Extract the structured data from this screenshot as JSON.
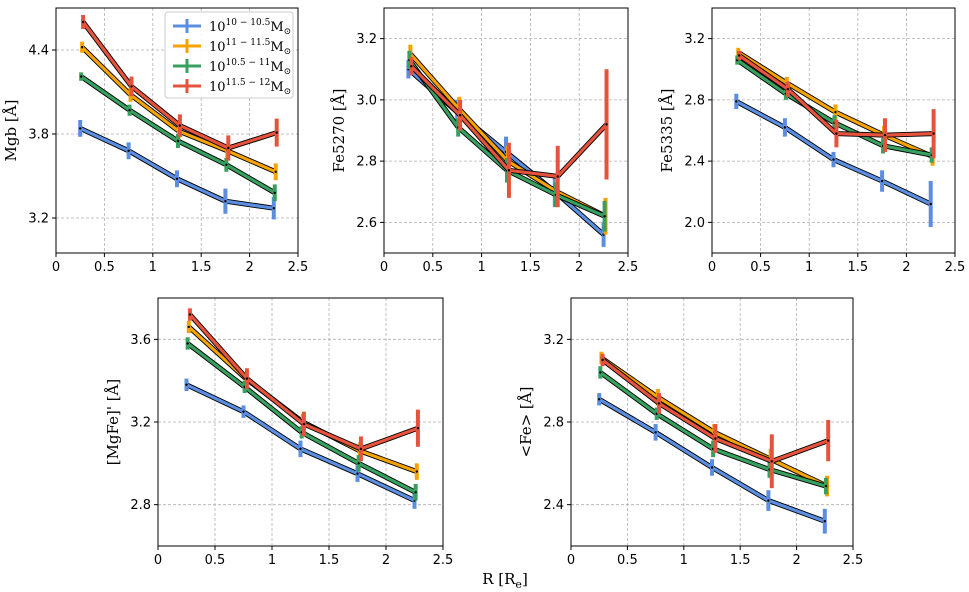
{
  "figure": {
    "shared_xlabel": "R [R",
    "shared_xlabel_sub": "e",
    "shared_xlabel_end": "]"
  },
  "legend": {
    "location": "top-right of first panel",
    "entries": [
      {
        "base": "10",
        "exp": "10 − 10.5",
        "unit": "M",
        "sub": "⊙",
        "color": "#5b8de0"
      },
      {
        "base": "10",
        "exp": "11 − 11.5",
        "unit": "M",
        "sub": "⊙",
        "color": "#f5a300"
      },
      {
        "base": "10",
        "exp": "10.5 − 11",
        "unit": "M",
        "sub": "⊙",
        "color": "#37a05f"
      },
      {
        "base": "10",
        "exp": "11.5 − 12",
        "unit": "M",
        "sub": "⊙",
        "color": "#e5533d"
      }
    ]
  },
  "chart_data": [
    {
      "type": "line",
      "ylabel": "Mgb [Å]",
      "xlim": [
        0,
        2.5
      ],
      "ylim": [
        2.95,
        4.7
      ],
      "xticks": [
        0,
        0.5,
        1,
        1.5,
        2,
        2.5
      ],
      "xticklabels": [
        "0",
        "0.5",
        "1",
        "1.5",
        "2",
        "2.5"
      ],
      "yticks": [
        3.2,
        3.8,
        4.4
      ],
      "yticklabels": [
        "3.2",
        "3.8",
        "4.4"
      ],
      "grid": true,
      "series": [
        {
          "name": "10^{10-10.5} M_sun",
          "color": "#5b8de0",
          "x": [
            0.25,
            0.75,
            1.25,
            1.75,
            2.25
          ],
          "y": [
            3.84,
            3.68,
            3.48,
            3.32,
            3.27
          ],
          "err": [
            0.06,
            0.06,
            0.06,
            0.09,
            0.08
          ]
        },
        {
          "name": "10^{11-11.5} M_sun",
          "color": "#f5a300",
          "x": [
            0.27,
            0.77,
            1.27,
            1.77,
            2.27
          ],
          "y": [
            4.42,
            4.08,
            3.82,
            3.68,
            3.53
          ],
          "err": [
            0.04,
            0.05,
            0.05,
            0.05,
            0.06
          ]
        },
        {
          "name": "10^{10.5-11} M_sun",
          "color": "#37a05f",
          "x": [
            0.26,
            0.76,
            1.26,
            1.76,
            2.26
          ],
          "y": [
            4.21,
            3.97,
            3.75,
            3.58,
            3.38
          ],
          "err": [
            0.03,
            0.04,
            0.05,
            0.05,
            0.06
          ]
        },
        {
          "name": "10^{11.5-12} M_sun",
          "color": "#e5533d",
          "x": [
            0.28,
            0.78,
            1.28,
            1.78,
            2.28
          ],
          "y": [
            4.6,
            4.14,
            3.86,
            3.7,
            3.81
          ],
          "err": [
            0.05,
            0.07,
            0.08,
            0.09,
            0.1
          ]
        }
      ]
    },
    {
      "type": "line",
      "ylabel": "Fe5270 [Å]",
      "xlim": [
        0,
        2.5
      ],
      "ylim": [
        2.5,
        3.3
      ],
      "xticks": [
        0,
        0.5,
        1,
        1.5,
        2,
        2.5
      ],
      "xticklabels": [
        "0",
        "0.5",
        "1",
        "1.5",
        "2",
        "2.5"
      ],
      "yticks": [
        2.6,
        2.8,
        3.0,
        3.2
      ],
      "yticklabels": [
        "2.6",
        "2.8",
        "3.0",
        "3.2"
      ],
      "grid": true,
      "series": [
        {
          "name": "10^{10-10.5} M_sun",
          "color": "#5b8de0",
          "x": [
            0.25,
            0.75,
            1.25,
            1.75,
            2.25
          ],
          "y": [
            3.1,
            2.96,
            2.83,
            2.7,
            2.56
          ],
          "err": [
            0.03,
            0.04,
            0.05,
            0.05,
            0.04
          ]
        },
        {
          "name": "10^{11-11.5} M_sun",
          "color": "#f5a300",
          "x": [
            0.27,
            0.77,
            1.27,
            1.77,
            2.27
          ],
          "y": [
            3.15,
            2.97,
            2.8,
            2.7,
            2.62
          ],
          "err": [
            0.03,
            0.04,
            0.05,
            0.05,
            0.06
          ]
        },
        {
          "name": "10^{10.5-11} M_sun",
          "color": "#37a05f",
          "x": [
            0.26,
            0.76,
            1.26,
            1.76,
            2.26
          ],
          "y": [
            3.13,
            2.91,
            2.77,
            2.69,
            2.62
          ],
          "err": [
            0.03,
            0.03,
            0.04,
            0.04,
            0.05
          ]
        },
        {
          "name": "10^{11.5-12} M_sun",
          "color": "#e5533d",
          "x": [
            0.28,
            0.78,
            1.28,
            1.78,
            2.28
          ],
          "y": [
            3.11,
            2.95,
            2.77,
            2.75,
            2.92
          ],
          "err": [
            0.03,
            0.05,
            0.09,
            0.1,
            0.18
          ]
        }
      ]
    },
    {
      "type": "line",
      "ylabel": "Fe5335 [Å]",
      "xlim": [
        0,
        2.5
      ],
      "ylim": [
        1.8,
        3.4
      ],
      "xticks": [
        0,
        0.5,
        1,
        1.5,
        2,
        2.5
      ],
      "xticklabels": [
        "0",
        "0.5",
        "1",
        "1.5",
        "2",
        "2.5"
      ],
      "yticks": [
        2.0,
        2.4,
        2.8,
        3.2
      ],
      "yticklabels": [
        "2.0",
        "2.4",
        "2.8",
        "3.2"
      ],
      "grid": true,
      "series": [
        {
          "name": "10^{10-10.5} M_sun",
          "color": "#5b8de0",
          "x": [
            0.25,
            0.75,
            1.25,
            1.75,
            2.25
          ],
          "y": [
            2.79,
            2.62,
            2.41,
            2.27,
            2.12
          ],
          "err": [
            0.05,
            0.06,
            0.05,
            0.07,
            0.15
          ]
        },
        {
          "name": "10^{11-11.5} M_sun",
          "color": "#f5a300",
          "x": [
            0.27,
            0.77,
            1.27,
            1.77,
            2.27
          ],
          "y": [
            3.11,
            2.91,
            2.72,
            2.57,
            2.43
          ],
          "err": [
            0.03,
            0.04,
            0.05,
            0.06,
            0.06
          ]
        },
        {
          "name": "10^{10.5-11} M_sun",
          "color": "#37a05f",
          "x": [
            0.26,
            0.76,
            1.26,
            1.76,
            2.26
          ],
          "y": [
            3.06,
            2.84,
            2.65,
            2.5,
            2.44
          ],
          "err": [
            0.03,
            0.04,
            0.05,
            0.05,
            0.05
          ]
        },
        {
          "name": "10^{11.5-12} M_sun",
          "color": "#e5533d",
          "x": [
            0.28,
            0.78,
            1.28,
            1.78,
            2.28
          ],
          "y": [
            3.09,
            2.87,
            2.58,
            2.57,
            2.58
          ],
          "err": [
            0.03,
            0.05,
            0.09,
            0.11,
            0.16
          ]
        }
      ]
    },
    {
      "type": "line",
      "ylabel": "[MgFe]' [Å]",
      "xlim": [
        0,
        2.5
      ],
      "ylim": [
        2.6,
        3.8
      ],
      "xticks": [
        0,
        0.5,
        1,
        1.5,
        2,
        2.5
      ],
      "xticklabels": [
        "0",
        "0.5",
        "1",
        "1.5",
        "2",
        "2.5"
      ],
      "yticks": [
        2.8,
        3.2,
        3.6
      ],
      "yticklabels": [
        "2.8",
        "3.2",
        "3.6"
      ],
      "grid": true,
      "series": [
        {
          "name": "10^{10-10.5} M_sun",
          "color": "#5b8de0",
          "x": [
            0.25,
            0.75,
            1.25,
            1.75,
            2.25
          ],
          "y": [
            3.38,
            3.25,
            3.07,
            2.95,
            2.82
          ],
          "err": [
            0.03,
            0.03,
            0.04,
            0.04,
            0.04
          ]
        },
        {
          "name": "10^{11-11.5} M_sun",
          "color": "#f5a300",
          "x": [
            0.27,
            0.77,
            1.27,
            1.77,
            2.27
          ],
          "y": [
            3.66,
            3.41,
            3.2,
            3.06,
            2.96
          ],
          "err": [
            0.03,
            0.03,
            0.04,
            0.04,
            0.04
          ]
        },
        {
          "name": "10^{10.5-11} M_sun",
          "color": "#37a05f",
          "x": [
            0.26,
            0.76,
            1.26,
            1.76,
            2.26
          ],
          "y": [
            3.58,
            3.37,
            3.15,
            3.0,
            2.86
          ],
          "err": [
            0.03,
            0.03,
            0.03,
            0.04,
            0.04
          ]
        },
        {
          "name": "10^{11.5-12} M_sun",
          "color": "#e5533d",
          "x": [
            0.28,
            0.78,
            1.28,
            1.78,
            2.28
          ],
          "y": [
            3.72,
            3.41,
            3.19,
            3.07,
            3.17
          ],
          "err": [
            0.03,
            0.05,
            0.06,
            0.06,
            0.09
          ]
        }
      ]
    },
    {
      "type": "line",
      "ylabel": "<Fe> [Å]",
      "xlim": [
        0,
        2.5
      ],
      "ylim": [
        2.2,
        3.4
      ],
      "xticks": [
        0,
        0.5,
        1,
        1.5,
        2,
        2.5
      ],
      "xticklabels": [
        "0",
        "0.5",
        "1",
        "1.5",
        "2",
        "2.5"
      ],
      "yticks": [
        2.4,
        2.8,
        3.2
      ],
      "yticklabels": [
        "2.4",
        "2.8",
        "3.2"
      ],
      "grid": true,
      "series": [
        {
          "name": "10^{10-10.5} M_sun",
          "color": "#5b8de0",
          "x": [
            0.25,
            0.75,
            1.25,
            1.75,
            2.25
          ],
          "y": [
            2.91,
            2.75,
            2.58,
            2.42,
            2.32
          ],
          "err": [
            0.03,
            0.04,
            0.04,
            0.05,
            0.06
          ]
        },
        {
          "name": "10^{11-11.5} M_sun",
          "color": "#f5a300",
          "x": [
            0.27,
            0.77,
            1.27,
            1.77,
            2.27
          ],
          "y": [
            3.11,
            2.92,
            2.75,
            2.62,
            2.49
          ],
          "err": [
            0.03,
            0.04,
            0.04,
            0.05,
            0.05
          ]
        },
        {
          "name": "10^{10.5-11} M_sun",
          "color": "#37a05f",
          "x": [
            0.26,
            0.76,
            1.26,
            1.76,
            2.26
          ],
          "y": [
            3.04,
            2.84,
            2.67,
            2.57,
            2.49
          ],
          "err": [
            0.03,
            0.03,
            0.04,
            0.04,
            0.04
          ]
        },
        {
          "name": "10^{11.5-12} M_sun",
          "color": "#e5533d",
          "x": [
            0.28,
            0.78,
            1.28,
            1.78,
            2.28
          ],
          "y": [
            3.1,
            2.89,
            2.72,
            2.61,
            2.71
          ],
          "err": [
            0.03,
            0.05,
            0.07,
            0.13,
            0.1
          ]
        }
      ]
    }
  ]
}
